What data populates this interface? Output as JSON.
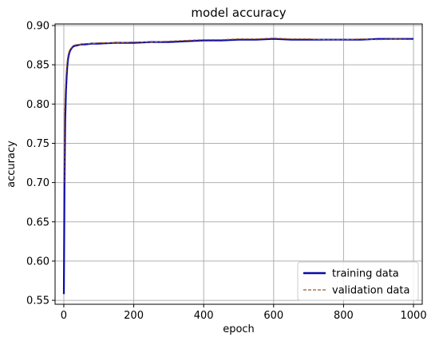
{
  "chart_data": {
    "type": "line",
    "title": "model accuracy",
    "xlabel": "epoch",
    "ylabel": "accuracy",
    "xlim": [
      -25,
      1025
    ],
    "ylim": [
      0.545,
      0.902
    ],
    "xticks": [
      0,
      200,
      400,
      600,
      800,
      1000
    ],
    "yticks": [
      0.55,
      0.6,
      0.65,
      0.7,
      0.75,
      0.8,
      0.85,
      0.9
    ],
    "ytick_labels": [
      "0.55",
      "0.60",
      "0.65",
      "0.70",
      "0.75",
      "0.80",
      "0.85",
      "0.90"
    ],
    "grid": true,
    "legend_position": "lower-right",
    "series": [
      {
        "name": "training data",
        "color": "#0a0aa8",
        "style": "solid",
        "x": [
          0,
          2,
          4,
          6,
          8,
          10,
          12,
          15,
          18,
          22,
          26,
          30,
          40,
          50,
          60,
          80,
          100,
          150,
          200,
          250,
          300,
          350,
          400,
          450,
          500,
          550,
          600,
          650,
          700,
          750,
          800,
          850,
          900,
          950,
          1000
        ],
        "y": [
          0.558,
          0.7,
          0.78,
          0.815,
          0.835,
          0.848,
          0.857,
          0.864,
          0.868,
          0.871,
          0.873,
          0.874,
          0.875,
          0.876,
          0.876,
          0.877,
          0.877,
          0.878,
          0.878,
          0.879,
          0.879,
          0.88,
          0.881,
          0.881,
          0.882,
          0.882,
          0.883,
          0.882,
          0.882,
          0.882,
          0.882,
          0.882,
          0.883,
          0.883,
          0.883
        ]
      },
      {
        "name": "validation data",
        "color": "#9b5b25",
        "style": "dashed",
        "x": [
          0,
          2,
          4,
          6,
          8,
          10,
          12,
          15,
          18,
          22,
          26,
          30,
          40,
          50,
          60,
          80,
          100,
          150,
          200,
          250,
          300,
          350,
          400,
          450,
          500,
          550,
          600,
          650,
          700,
          750,
          800,
          850,
          900,
          950,
          1000
        ],
        "y": [
          0.7,
          0.79,
          0.815,
          0.835,
          0.848,
          0.856,
          0.862,
          0.867,
          0.87,
          0.872,
          0.874,
          0.875,
          0.876,
          0.876,
          0.877,
          0.877,
          0.878,
          0.878,
          0.879,
          0.879,
          0.88,
          0.881,
          0.882,
          0.882,
          0.883,
          0.883,
          0.884,
          0.883,
          0.883,
          0.882,
          0.882,
          0.883,
          0.882,
          0.883,
          0.882
        ]
      }
    ]
  }
}
